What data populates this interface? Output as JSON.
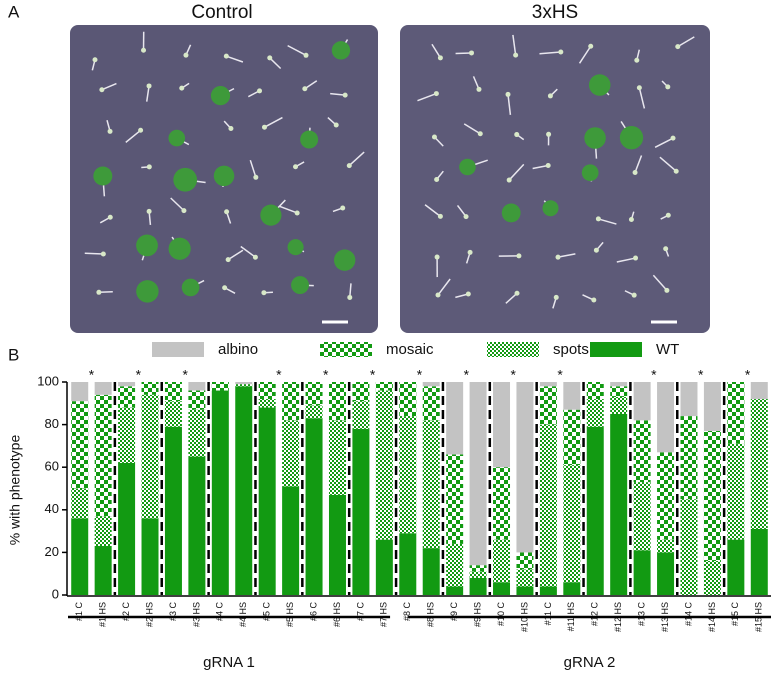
{
  "panels": {
    "a_label": "A",
    "b_label": "B",
    "left_title": "Control",
    "right_title": "3xHS"
  },
  "chart_data": {
    "type": "stacked-bar",
    "ylabel": "% with phenotype",
    "ylim": [
      0,
      100
    ],
    "yticks": [
      0,
      20,
      40,
      60,
      80,
      100
    ],
    "categories": [
      "#1 C",
      "#1 HS",
      "#2 C",
      "#2 HS",
      "#3 C",
      "#3 HS",
      "#4 C",
      "#4 HS",
      "#5 C",
      "#5 HS",
      "#6 C",
      "#6 HS",
      "#7 C",
      "#7 HS",
      "#8 C",
      "#8 HS",
      "#9 C",
      "#9 HS",
      "#10 C",
      "#10 HS",
      "#11 C",
      "#11 HS",
      "#12 C",
      "#12 HS",
      "#13 C",
      "#13 HS",
      "#14 C",
      "#14 HS",
      "#15 C",
      "#15 HS"
    ],
    "series": [
      {
        "name": "WT",
        "color": "#129a12",
        "pattern": "solid",
        "values": [
          36,
          23,
          62,
          36,
          79,
          65,
          96,
          98,
          88,
          51,
          83,
          47,
          78,
          26,
          29,
          22,
          4,
          8,
          6,
          4,
          4,
          6,
          79,
          85,
          21,
          20,
          0,
          0,
          26,
          31
        ]
      },
      {
        "name": "spots",
        "color": "#129a12",
        "pattern": "fine-checker",
        "values": [
          14,
          14,
          26,
          58,
          12,
          22,
          0,
          1,
          4,
          31,
          6,
          35,
          13,
          70,
          55,
          60,
          20,
          3,
          20,
          8,
          76,
          55,
          13,
          8,
          32,
          6,
          45,
          16,
          45,
          61
        ]
      },
      {
        "name": "mosaic",
        "color": "#129a12",
        "pattern": "coarse-checker",
        "values": [
          41,
          57,
          10,
          6,
          9,
          9,
          4,
          0,
          8,
          18,
          11,
          18,
          9,
          4,
          16,
          16,
          42,
          3,
          34,
          8,
          18,
          26,
          8,
          5,
          29,
          41,
          39,
          61,
          29,
          0
        ]
      },
      {
        "name": "albino",
        "color": "#c3c3c3",
        "pattern": "solid",
        "values": [
          9,
          6,
          2,
          0,
          0,
          4,
          0,
          1,
          0,
          0,
          0,
          0,
          0,
          0,
          0,
          2,
          34,
          86,
          40,
          80,
          2,
          13,
          0,
          2,
          18,
          33,
          16,
          23,
          0,
          8
        ]
      }
    ],
    "legend_order": [
      "albino",
      "mosaic",
      "spots",
      "WT"
    ],
    "significance": [
      "*",
      "*",
      "*",
      null,
      "*",
      "*",
      "*",
      "*",
      "*",
      "*",
      "*",
      null,
      "*",
      "*",
      "*"
    ],
    "groups": [
      "gRNA 1",
      "gRNA 2"
    ]
  }
}
